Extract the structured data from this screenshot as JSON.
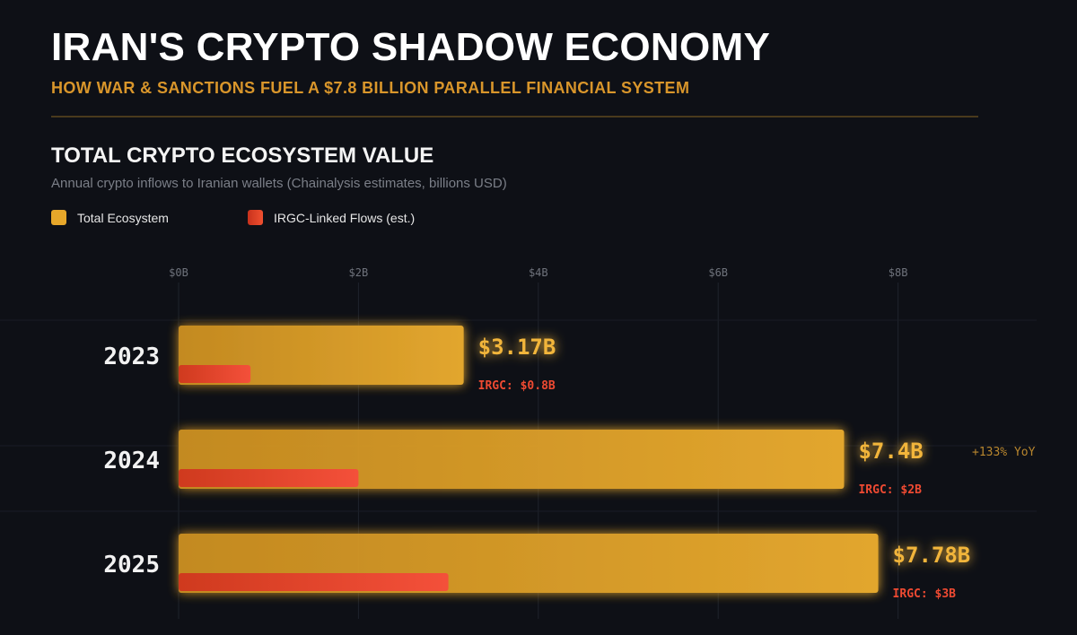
{
  "header": {
    "title": "IRAN'S CRYPTO SHADOW ECONOMY",
    "subtitle": "HOW WAR & SANCTIONS FUEL A $7.8 BILLION PARALLEL FINANCIAL SYSTEM"
  },
  "section": {
    "title": "TOTAL CRYPTO ECOSYSTEM VALUE",
    "subtitle": "Annual crypto inflows to Iranian wallets (Chainalysis estimates, billions USD)"
  },
  "legend": [
    {
      "label": "Total Ecosystem",
      "color": "#e7a72a"
    },
    {
      "label": "IRGC-Linked Flows (est.)",
      "color": "#e8442a"
    }
  ],
  "colors": {
    "background": "#0e1016",
    "bar_total": "#e7a72a",
    "bar_irgc": "#e8442a",
    "value_label": "#f2b53a",
    "irgc_label": "#ef4a32",
    "yoy_label": "#b8862e"
  },
  "chart_data": {
    "type": "bar",
    "orientation": "horizontal",
    "categories": [
      "2023",
      "2024",
      "2025"
    ],
    "series": [
      {
        "name": "Total Ecosystem",
        "values": [
          3.17,
          7.4,
          7.78
        ]
      },
      {
        "name": "IRGC-Linked Flows (est.)",
        "values": [
          0.8,
          2,
          3
        ]
      }
    ],
    "value_labels": [
      "$3.17B",
      "$7.4B",
      "$7.78B"
    ],
    "irgc_labels": [
      "IRGC: $0.8B",
      "IRGC: $2B",
      "IRGC: $3B"
    ],
    "annotations": [
      {
        "category": "2024",
        "text": "+133% YoY"
      }
    ],
    "x_ticks": [
      0,
      2,
      4,
      6,
      8
    ],
    "x_tick_labels": [
      "$0B",
      "$2B",
      "$4B",
      "$6B",
      "$8B"
    ],
    "xlim": [
      0,
      9.6
    ],
    "grid": true,
    "legend_position": "top-left"
  }
}
